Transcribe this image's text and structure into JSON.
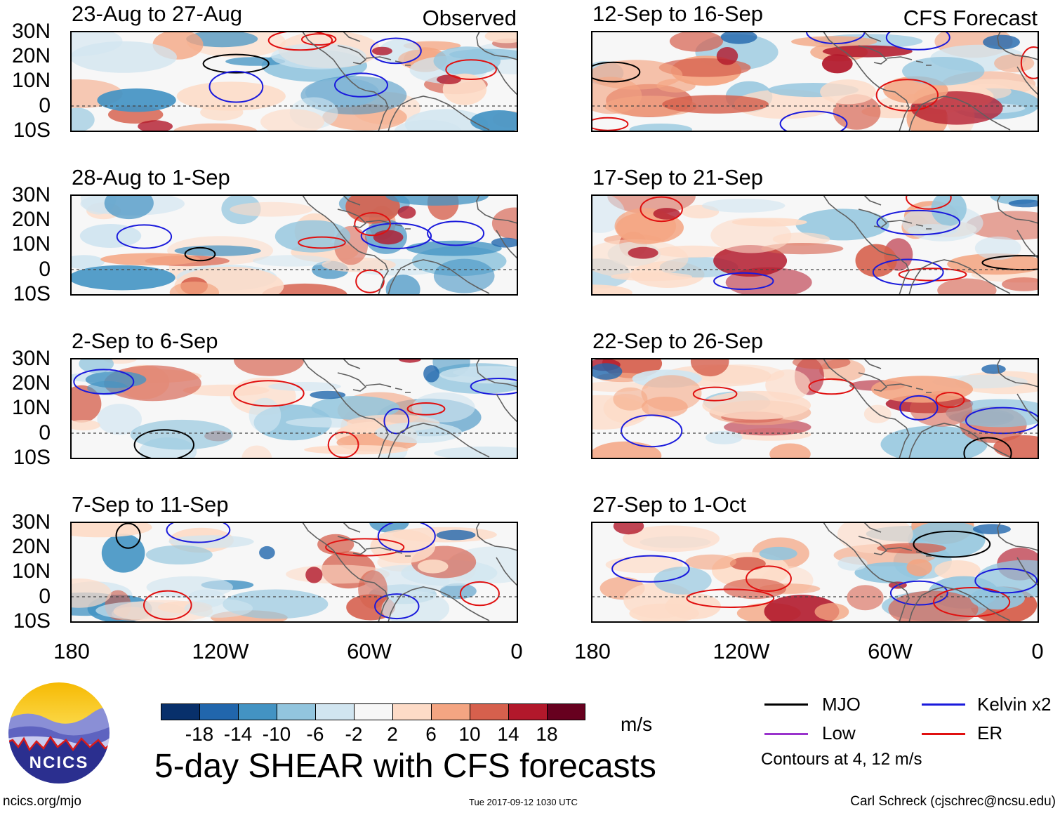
{
  "figure_title": "5-day SHEAR with CFS forecasts",
  "corner_labels": {
    "observed": "Observed",
    "forecast": "CFS Forecast"
  },
  "lat_labels": [
    "30N",
    "20N",
    "10N",
    "0",
    "10S"
  ],
  "lon_labels": [
    "180",
    "120W",
    "60W",
    "0"
  ],
  "panels": [
    {
      "title": "23-Aug to 27-Aug",
      "kind": "observed"
    },
    {
      "title": "28-Aug to 1-Sep",
      "kind": "observed"
    },
    {
      "title": "2-Sep to 6-Sep",
      "kind": "observed"
    },
    {
      "title": "7-Sep to 11-Sep",
      "kind": "observed"
    },
    {
      "title": "12-Sep to 16-Sep",
      "kind": "forecast"
    },
    {
      "title": "17-Sep to 21-Sep",
      "kind": "forecast"
    },
    {
      "title": "22-Sep to 26-Sep",
      "kind": "forecast"
    },
    {
      "title": "27-Sep to 1-Oct",
      "kind": "forecast"
    }
  ],
  "colorbar": {
    "units": "m/s",
    "labels": [
      "-18",
      "-14",
      "-10",
      "-6",
      "-2",
      "2",
      "6",
      "10",
      "14",
      "18"
    ],
    "colors": [
      "#08306b",
      "#2166ac",
      "#4393c3",
      "#92c5de",
      "#d1e5f0",
      "#f7f7f7",
      "#fddbc7",
      "#f4a582",
      "#d6604d",
      "#b2182b",
      "#67001f"
    ]
  },
  "legend": {
    "items": [
      {
        "label": "MJO",
        "color": "#000000"
      },
      {
        "label": "Kelvin x2",
        "color": "#1a1adc"
      },
      {
        "label": "Low",
        "color": "#9933cc"
      },
      {
        "label": "ER",
        "color": "#e01010"
      }
    ],
    "note": "Contours at 4, 12 m/s"
  },
  "logo_text": "NCICS",
  "footer": {
    "left": "ncics.org/mjo",
    "center": "Tue 2017-09-12 1030 UTC",
    "right": "Carl Schreck (cjschrec@ncsu.edu)"
  }
}
